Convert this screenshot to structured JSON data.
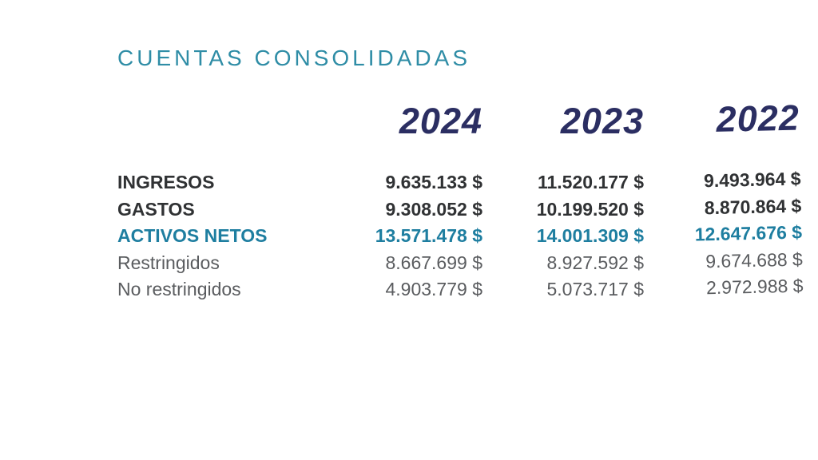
{
  "title": "CUENTAS CONSOLIDADAS",
  "table": {
    "years": [
      "2024",
      "2023",
      "2022"
    ],
    "rows": [
      {
        "label": "INGRESOS",
        "style": "bold-dark",
        "values": [
          "9.635.133 $",
          "11.520.177 $",
          "9.493.964 $"
        ]
      },
      {
        "label": "GASTOS",
        "style": "bold-dark",
        "values": [
          "9.308.052 $",
          "10.199.520 $",
          "8.870.864 $"
        ]
      },
      {
        "label": "ACTIVOS NETOS",
        "style": "bold-teal",
        "values": [
          "13.571.478 $",
          "14.001.309 $",
          "12.647.676 $"
        ]
      },
      {
        "label": "Restringidos",
        "style": "regular-gray",
        "values": [
          "8.667.699 $",
          "8.927.592 $",
          "9.674.688 $"
        ]
      },
      {
        "label": "No restringidos",
        "style": "regular-gray",
        "values": [
          "4.903.779 $",
          "5.073.717 $",
          "2.972.988 $"
        ]
      }
    ],
    "currency_symbol": "$"
  },
  "colors": {
    "title_teal": "#2f8da6",
    "accent_teal": "#1e7ea0",
    "year_navy": "#2b2e62",
    "dark_text": "#303234",
    "gray_text": "#5a5c5f",
    "background": "#ffffff"
  }
}
